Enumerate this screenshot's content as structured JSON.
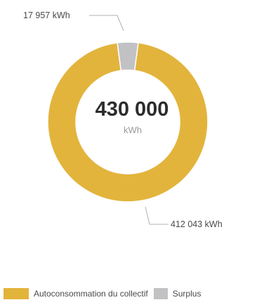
{
  "chart_data": {
    "type": "pie",
    "categories": [
      "Autoconsommation du collectif",
      "Surplus"
    ],
    "values": [
      412043,
      17957
    ],
    "data_labels": [
      "412 043 kWh",
      "17 957 kWh"
    ],
    "colors": [
      "#e3b43c",
      "#c2c2c4"
    ],
    "center_total": "430 000",
    "center_unit": "kWh",
    "legend_placement": "bottom"
  },
  "legend": {
    "items": [
      {
        "label": "Autoconsommation du collectif",
        "color": "#e3b43c"
      },
      {
        "label": "Surplus",
        "color": "#c2c2c4"
      }
    ]
  }
}
